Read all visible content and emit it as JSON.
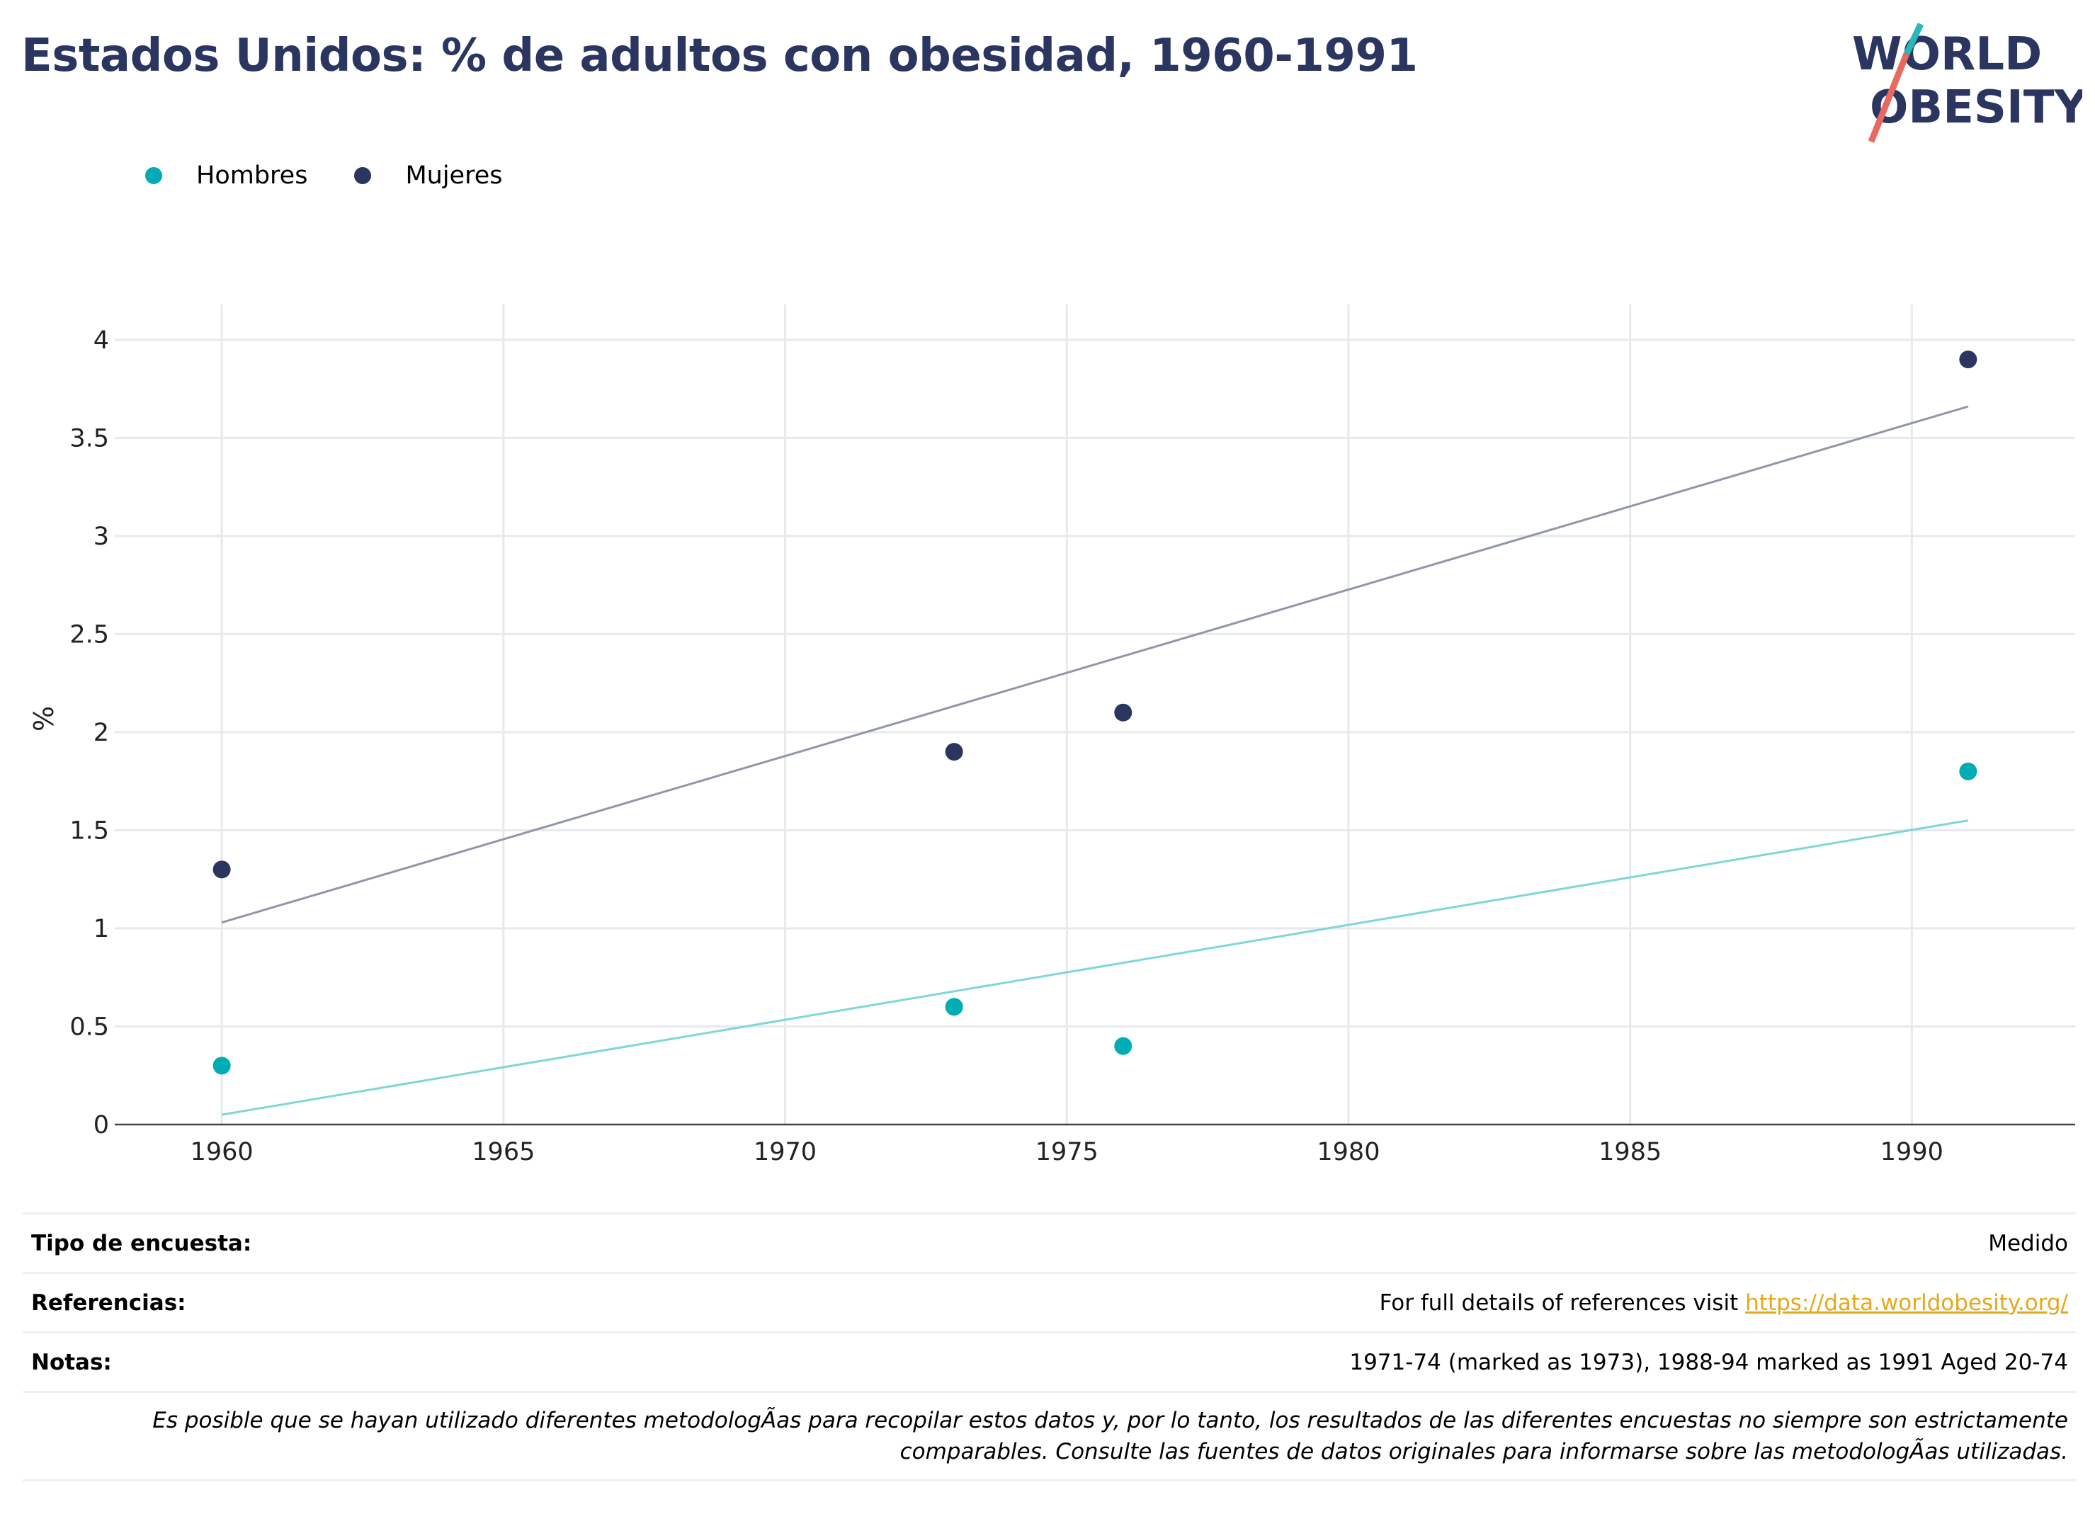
{
  "title": "Estados Unidos: % de adultos con obesidad, 1960-1991",
  "logo": {
    "line1": "WORLD",
    "line2": "OBESITY",
    "slash_colors": [
      "#2ab7b7",
      "#e8695f"
    ]
  },
  "legend": [
    {
      "label": "Hombres",
      "color": "#00adb5"
    },
    {
      "label": "Mujeres",
      "color": "#2a3560"
    }
  ],
  "chart_data": {
    "type": "scatter",
    "title": "Estados Unidos: % de adultos con obesidad, 1960-1991",
    "xlabel": "",
    "ylabel": "%",
    "xlim": [
      1958.1,
      1992.9
    ],
    "ylim": [
      0,
      4.18
    ],
    "x_ticks": [
      1960,
      1965,
      1970,
      1975,
      1980,
      1985,
      1990
    ],
    "y_ticks": [
      0,
      0.5,
      1,
      1.5,
      2,
      2.5,
      3,
      3.5,
      4
    ],
    "y_tick_labels": [
      "0",
      "0.5",
      "1",
      "1.5",
      "2",
      "2.5",
      "3",
      "3.5",
      "4"
    ],
    "grid": true,
    "legend_position": "top-left",
    "series": [
      {
        "name": "Hombres",
        "color": "#00adb5",
        "points": [
          {
            "x": 1960,
            "y": 0.3
          },
          {
            "x": 1973,
            "y": 0.6
          },
          {
            "x": 1976,
            "y": 0.4
          },
          {
            "x": 1991,
            "y": 1.8
          }
        ],
        "trend": {
          "x": [
            1960,
            1991
          ],
          "y": [
            0.05,
            1.55
          ],
          "color": "#7fd6da"
        }
      },
      {
        "name": "Mujeres",
        "color": "#2a3560",
        "points": [
          {
            "x": 1960,
            "y": 1.3
          },
          {
            "x": 1973,
            "y": 1.9
          },
          {
            "x": 1976,
            "y": 2.1
          },
          {
            "x": 1991,
            "y": 3.9
          }
        ],
        "trend": {
          "x": [
            1960,
            1991
          ],
          "y": [
            1.03,
            3.66
          ],
          "color": "#9096ab"
        }
      }
    ]
  },
  "info": {
    "survey_label": "Tipo de encuesta:",
    "survey_value": "Medido",
    "refs_label": "Referencias:",
    "refs_text": "For full details of references visit ",
    "refs_link": "https://data.worldobesity.org/",
    "notes_label": "Notas:",
    "notes_value": "1971-74 (marked as 1973), 1988-94 marked as 1991 Aged 20-74",
    "disclaimer_line1": "Es posible que se hayan utilizado diferentes metodologÃas para recopilar estos datos y, por lo tanto, los resultados de las diferentes encuestas no siempre son estrictamente",
    "disclaimer_line2": "comparables. Consulte las fuentes de datos originales para informarse sobre las metodologÃas utilizadas."
  }
}
